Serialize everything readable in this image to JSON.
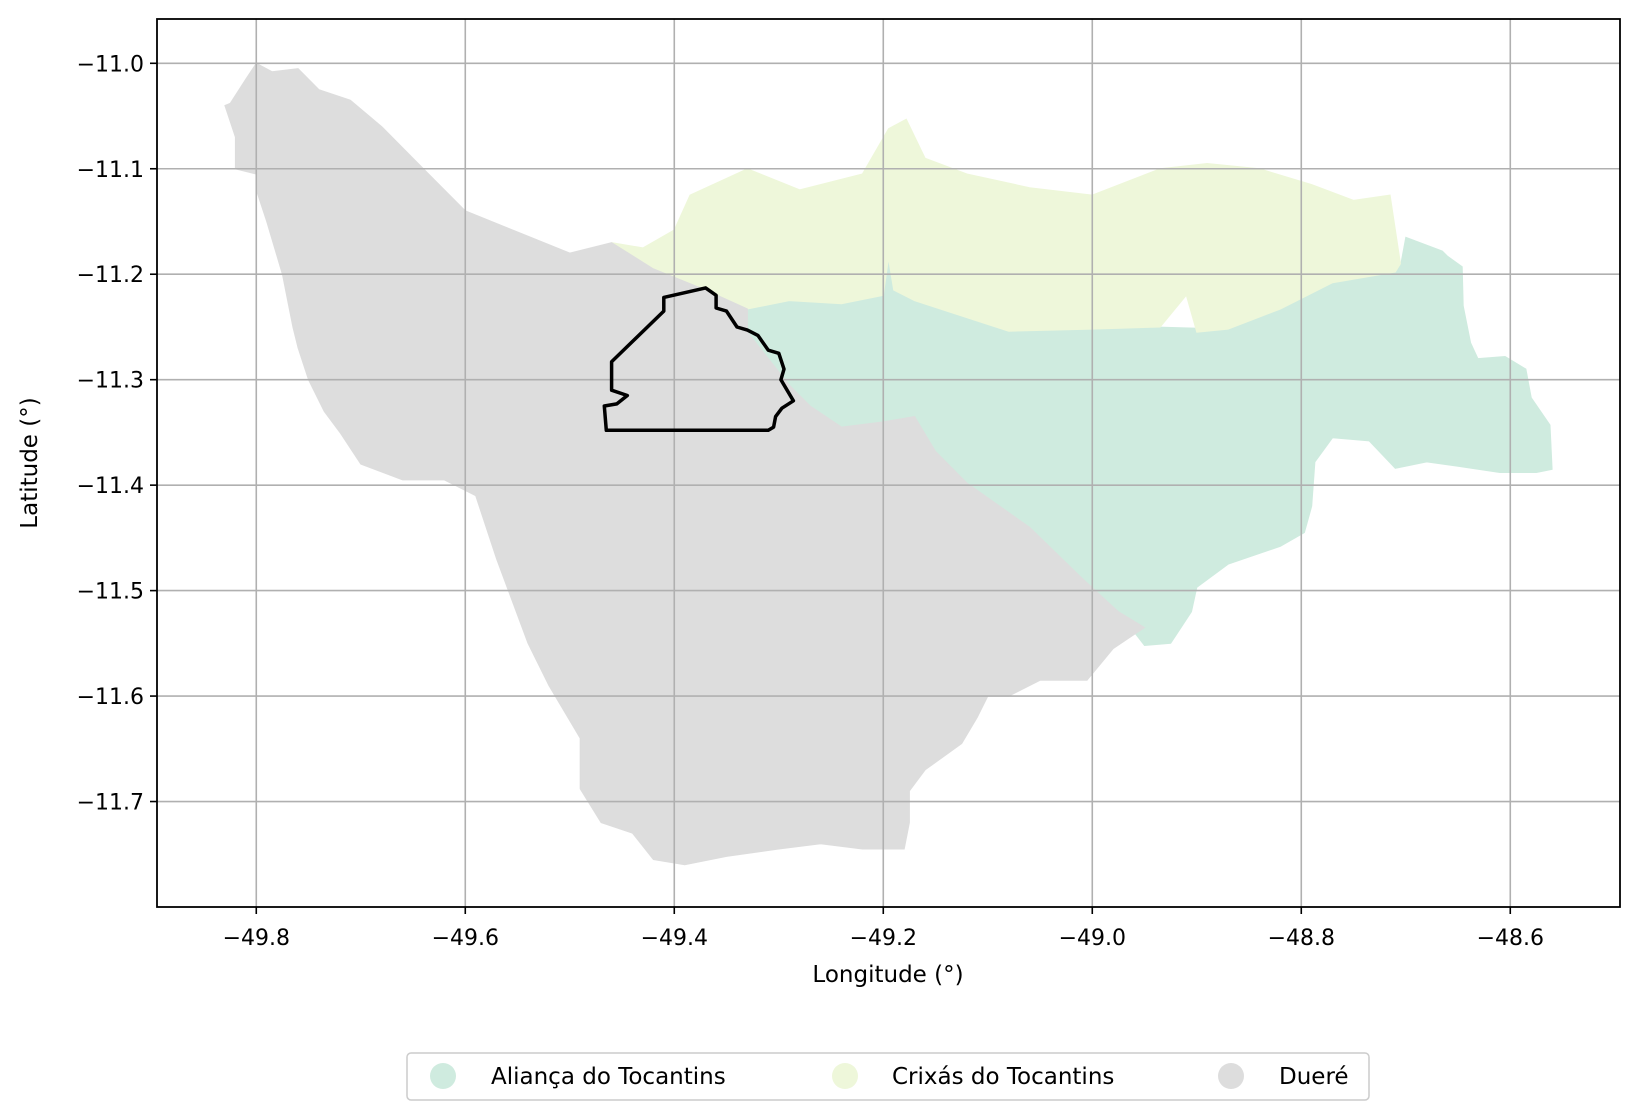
{
  "chart_data": {
    "type": "map",
    "xlabel": "Longitude (°)",
    "ylabel": "Latitude (°)",
    "xlim": [
      -49.895,
      -48.495
    ],
    "ylim": [
      -11.8,
      -10.958
    ],
    "xticks": [
      -49.8,
      -49.6,
      -49.4,
      -49.2,
      -49.0,
      -48.8,
      -48.6
    ],
    "xtick_labels": [
      "−49.8",
      "−49.6",
      "−49.4",
      "−49.2",
      "−49.0",
      "−48.8",
      "−48.6"
    ],
    "yticks": [
      -11.0,
      -11.1,
      -11.2,
      -11.3,
      -11.4,
      -11.5,
      -11.6,
      -11.7
    ],
    "ytick_labels": [
      "−11.0",
      "−11.1",
      "−11.2",
      "−11.3",
      "−11.4",
      "−11.5",
      "−11.6",
      "−11.7"
    ],
    "grid": true,
    "legend_position": "bottom-center",
    "regions": [
      {
        "name": "Aliança do Tocantins",
        "color": "#cfebdf",
        "outline": [
          [
            -49.33,
            -11.233
          ],
          [
            -49.29,
            -11.225
          ],
          [
            -49.24,
            -11.228
          ],
          [
            -49.2,
            -11.22
          ],
          [
            -49.195,
            -11.185
          ],
          [
            -49.19,
            -11.215
          ],
          [
            -49.13,
            -11.238
          ],
          [
            -49.08,
            -11.254
          ],
          [
            -49.0,
            -11.252
          ],
          [
            -48.94,
            -11.25
          ],
          [
            -48.87,
            -11.252
          ],
          [
            -48.82,
            -11.233
          ],
          [
            -48.77,
            -11.208
          ],
          [
            -48.705,
            -11.192
          ],
          [
            -48.7,
            -11.165
          ],
          [
            -48.665,
            -11.178
          ],
          [
            -48.66,
            -11.183
          ],
          [
            -48.646,
            -11.193
          ],
          [
            -48.645,
            -11.23
          ],
          [
            -48.638,
            -11.265
          ],
          [
            -48.631,
            -11.28
          ],
          [
            -48.605,
            -11.278
          ],
          [
            -48.585,
            -11.29
          ],
          [
            -48.58,
            -11.317
          ],
          [
            -48.562,
            -11.343
          ],
          [
            -48.56,
            -11.385
          ],
          [
            -48.575,
            -11.388
          ],
          [
            -48.61,
            -11.388
          ],
          [
            -48.65,
            -11.382
          ],
          [
            -48.68,
            -11.378
          ],
          [
            -48.71,
            -11.384
          ],
          [
            -48.735,
            -11.358
          ],
          [
            -48.77,
            -11.355
          ],
          [
            -48.787,
            -11.378
          ],
          [
            -48.79,
            -11.42
          ],
          [
            -48.797,
            -11.445
          ],
          [
            -48.82,
            -11.458
          ],
          [
            -48.87,
            -11.475
          ],
          [
            -48.9,
            -11.497
          ],
          [
            -48.905,
            -11.52
          ],
          [
            -48.925,
            -11.55
          ],
          [
            -48.95,
            -11.552
          ],
          [
            -48.975,
            -11.52
          ],
          [
            -49.01,
            -11.488
          ],
          [
            -49.06,
            -11.44
          ],
          [
            -49.12,
            -11.398
          ],
          [
            -49.15,
            -11.368
          ],
          [
            -49.17,
            -11.34
          ],
          [
            -49.2,
            -11.34
          ],
          [
            -49.24,
            -11.345
          ],
          [
            -49.27,
            -11.325
          ],
          [
            -49.29,
            -11.305
          ],
          [
            -49.31,
            -11.28
          ],
          [
            -49.33,
            -11.255
          ]
        ]
      },
      {
        "name": "Crixás do Tocantins",
        "color": "#eef7da",
        "outline": [
          [
            -49.46,
            -11.17
          ],
          [
            -49.43,
            -11.175
          ],
          [
            -49.4,
            -11.158
          ],
          [
            -49.385,
            -11.125
          ],
          [
            -49.33,
            -11.1
          ],
          [
            -49.28,
            -11.12
          ],
          [
            -49.22,
            -11.105
          ],
          [
            -49.195,
            -11.062
          ],
          [
            -49.178,
            -11.053
          ],
          [
            -49.16,
            -11.09
          ],
          [
            -49.12,
            -11.105
          ],
          [
            -49.06,
            -11.118
          ],
          [
            -49.0,
            -11.125
          ],
          [
            -48.935,
            -11.1
          ],
          [
            -48.89,
            -11.095
          ],
          [
            -48.84,
            -11.1
          ],
          [
            -48.79,
            -11.115
          ],
          [
            -48.75,
            -11.13
          ],
          [
            -48.715,
            -11.125
          ],
          [
            -48.705,
            -11.19
          ],
          [
            -48.71,
            -11.198
          ],
          [
            -48.77,
            -11.208
          ],
          [
            -48.82,
            -11.233
          ],
          [
            -48.87,
            -11.252
          ],
          [
            -48.9,
            -11.255
          ],
          [
            -48.91,
            -11.22
          ],
          [
            -48.935,
            -11.25
          ],
          [
            -49.0,
            -11.252
          ],
          [
            -49.08,
            -11.254
          ],
          [
            -49.13,
            -11.238
          ],
          [
            -49.17,
            -11.225
          ],
          [
            -49.19,
            -11.215
          ],
          [
            -49.195,
            -11.185
          ],
          [
            -49.2,
            -11.22
          ],
          [
            -49.24,
            -11.228
          ],
          [
            -49.29,
            -11.225
          ],
          [
            -49.33,
            -11.233
          ],
          [
            -49.37,
            -11.215
          ],
          [
            -49.42,
            -11.195
          ]
        ]
      },
      {
        "name": "Dueré",
        "color": "#dddddd",
        "outline": [
          [
            -49.825,
            -11.038
          ],
          [
            -49.81,
            -11.015
          ],
          [
            -49.8,
            -11.0
          ],
          [
            -49.785,
            -11.008
          ],
          [
            -49.76,
            -11.005
          ],
          [
            -49.74,
            -11.025
          ],
          [
            -49.71,
            -11.035
          ],
          [
            -49.68,
            -11.06
          ],
          [
            -49.65,
            -11.09
          ],
          [
            -49.62,
            -11.12
          ],
          [
            -49.6,
            -11.14
          ],
          [
            -49.55,
            -11.16
          ],
          [
            -49.5,
            -11.18
          ],
          [
            -49.46,
            -11.17
          ],
          [
            -49.42,
            -11.195
          ],
          [
            -49.37,
            -11.215
          ],
          [
            -49.33,
            -11.233
          ],
          [
            -49.33,
            -11.255
          ],
          [
            -49.31,
            -11.28
          ],
          [
            -49.29,
            -11.305
          ],
          [
            -49.27,
            -11.325
          ],
          [
            -49.24,
            -11.345
          ],
          [
            -49.2,
            -11.34
          ],
          [
            -49.17,
            -11.335
          ],
          [
            -49.15,
            -11.368
          ],
          [
            -49.12,
            -11.398
          ],
          [
            -49.06,
            -11.44
          ],
          [
            -49.01,
            -11.488
          ],
          [
            -48.975,
            -11.52
          ],
          [
            -48.95,
            -11.535
          ],
          [
            -48.98,
            -11.555
          ],
          [
            -49.005,
            -11.585
          ],
          [
            -49.05,
            -11.585
          ],
          [
            -49.08,
            -11.6
          ],
          [
            -49.1,
            -11.6
          ],
          [
            -49.11,
            -11.62
          ],
          [
            -49.125,
            -11.645
          ],
          [
            -49.16,
            -11.67
          ],
          [
            -49.175,
            -11.69
          ],
          [
            -49.175,
            -11.72
          ],
          [
            -49.18,
            -11.745
          ],
          [
            -49.22,
            -11.745
          ],
          [
            -49.26,
            -11.74
          ],
          [
            -49.3,
            -11.745
          ],
          [
            -49.35,
            -11.752
          ],
          [
            -49.39,
            -11.76
          ],
          [
            -49.42,
            -11.755
          ],
          [
            -49.44,
            -11.73
          ],
          [
            -49.47,
            -11.72
          ],
          [
            -49.49,
            -11.688
          ],
          [
            -49.49,
            -11.64
          ],
          [
            -49.52,
            -11.59
          ],
          [
            -49.54,
            -11.55
          ],
          [
            -49.57,
            -11.47
          ],
          [
            -49.59,
            -11.41
          ],
          [
            -49.62,
            -11.395
          ],
          [
            -49.66,
            -11.395
          ],
          [
            -49.7,
            -11.38
          ],
          [
            -49.72,
            -11.35
          ],
          [
            -49.735,
            -11.33
          ],
          [
            -49.75,
            -11.3
          ],
          [
            -49.76,
            -11.27
          ],
          [
            -49.765,
            -11.25
          ],
          [
            -49.775,
            -11.2
          ],
          [
            -49.79,
            -11.15
          ],
          [
            -49.8,
            -11.12
          ],
          [
            -49.8,
            -11.105
          ],
          [
            -49.82,
            -11.1
          ],
          [
            -49.82,
            -11.07
          ],
          [
            -49.83,
            -11.04
          ]
        ]
      }
    ],
    "highlight_outline": [
      [
        -49.37,
        -11.213
      ],
      [
        -49.36,
        -11.22
      ],
      [
        -49.36,
        -11.232
      ],
      [
        -49.35,
        -11.235
      ],
      [
        -49.34,
        -11.25
      ],
      [
        -49.33,
        -11.253
      ],
      [
        -49.32,
        -11.258
      ],
      [
        -49.31,
        -11.272
      ],
      [
        -49.3,
        -11.275
      ],
      [
        -49.295,
        -11.29
      ],
      [
        -49.298,
        -11.3
      ],
      [
        -49.286,
        -11.32
      ],
      [
        -49.297,
        -11.327
      ],
      [
        -49.303,
        -11.335
      ],
      [
        -49.305,
        -11.345
      ],
      [
        -49.31,
        -11.348
      ],
      [
        -49.465,
        -11.348
      ],
      [
        -49.467,
        -11.325
      ],
      [
        -49.455,
        -11.323
      ],
      [
        -49.445,
        -11.315
      ],
      [
        -49.46,
        -11.31
      ],
      [
        -49.46,
        -11.283
      ],
      [
        -49.41,
        -11.235
      ],
      [
        -49.41,
        -11.222
      ],
      [
        -49.37,
        -11.213
      ]
    ],
    "highlight_color": "#000000"
  }
}
